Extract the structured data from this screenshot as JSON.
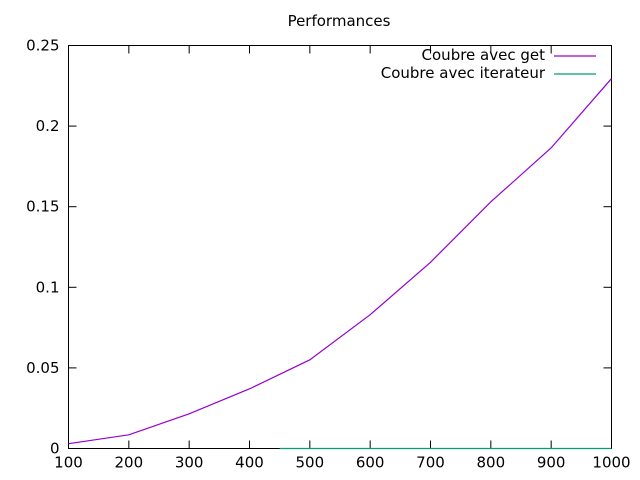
{
  "chart_data": {
    "type": "line",
    "title": "Performances",
    "xlabel": "",
    "ylabel": "",
    "xlim": [
      100,
      1000
    ],
    "ylim": [
      0,
      0.25
    ],
    "grid": false,
    "legend_position": "top-right",
    "x_ticks": [
      "100",
      "200",
      "300",
      "400",
      "500",
      "600",
      "700",
      "800",
      "900",
      "1000"
    ],
    "y_ticks": [
      "0",
      "0.05",
      "0.1",
      "0.15",
      "0.2",
      "0.25"
    ],
    "series": [
      {
        "name": "Coubre avec get",
        "color": "#9400d3",
        "x": [
          100,
          200,
          300,
          400,
          500,
          600,
          700,
          800,
          900,
          1000
        ],
        "y": [
          0.003,
          0.0085,
          0.0215,
          0.037,
          0.055,
          0.083,
          0.1155,
          0.153,
          0.1865,
          0.2295
        ]
      },
      {
        "name": "Coubre avec iterateur",
        "color": "#009e73",
        "x": [
          450,
          500,
          600,
          700,
          800,
          900,
          1000
        ],
        "y": [
          0,
          0,
          0,
          0,
          0,
          0,
          0
        ]
      }
    ]
  }
}
